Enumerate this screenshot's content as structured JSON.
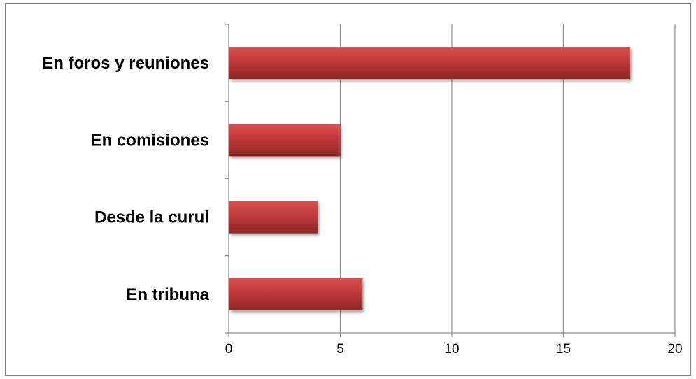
{
  "chart_data": {
    "type": "bar",
    "orientation": "horizontal",
    "categories": [
      "En foros y reuniones",
      "En comisiones",
      "Desde la curul",
      "En tribuna"
    ],
    "values": [
      18,
      5,
      4,
      6
    ],
    "xlim": [
      0,
      20
    ],
    "x_ticks": [
      0,
      5,
      10,
      15,
      20
    ],
    "grid": "vertical",
    "bar_color": "#c0393b",
    "bar_color_dark": "#8f2624",
    "bar_color_light": "#d9504d",
    "title": "",
    "xlabel": "",
    "ylabel": ""
  }
}
